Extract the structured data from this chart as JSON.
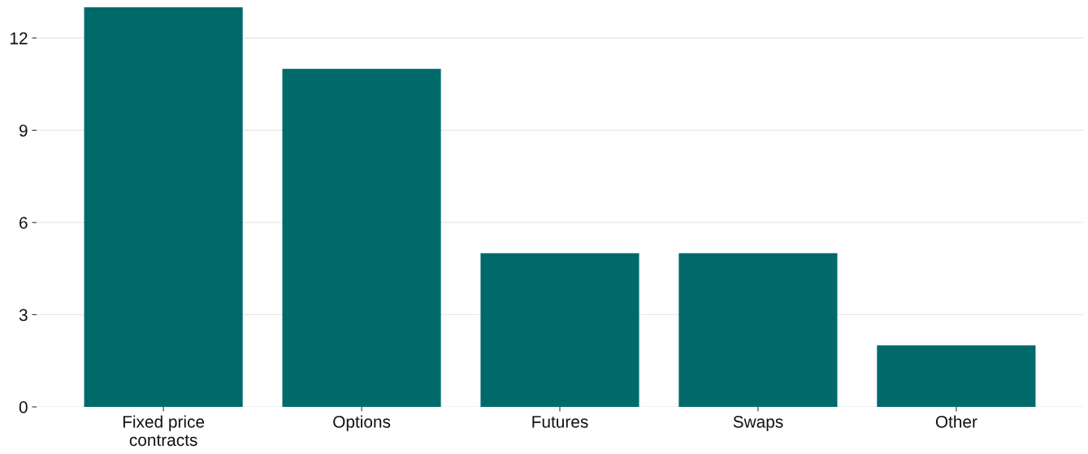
{
  "chart_data": {
    "type": "bar",
    "categories": [
      "Fixed price\ncontracts",
      "Options",
      "Futures",
      "Swaps",
      "Other"
    ],
    "values": [
      13,
      11,
      5,
      5,
      2
    ],
    "color": "#006a6b",
    "ylim": [
      0,
      13
    ],
    "yticks": [
      0,
      3,
      6,
      9,
      12
    ],
    "grid": "y"
  }
}
